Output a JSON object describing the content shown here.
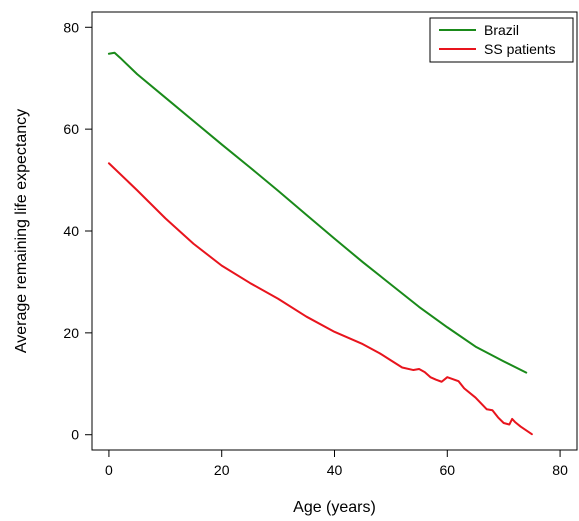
{
  "chart_data": {
    "type": "line",
    "title": "",
    "xlabel": "Age (years)",
    "ylabel": "Average remaining life expectancy",
    "xlim": [
      -3,
      83
    ],
    "ylim": [
      -3,
      83
    ],
    "x_ticks": [
      0,
      20,
      40,
      60,
      80
    ],
    "y_ticks": [
      0,
      20,
      40,
      60,
      80
    ],
    "x_tick_labels": [
      "0",
      "20",
      "40",
      "60",
      "80"
    ],
    "y_tick_labels": [
      "0",
      "20",
      "40",
      "60",
      "80"
    ],
    "grid": false,
    "legend_position": "top-right",
    "series": [
      {
        "name": "Brazil",
        "color": "#1a8a1a",
        "x": [
          0,
          1,
          2,
          5,
          10,
          15,
          20,
          25,
          30,
          35,
          40,
          45,
          50,
          55,
          60,
          65,
          70,
          74
        ],
        "y": [
          74.8,
          75.0,
          74.0,
          70.8,
          66.2,
          61.6,
          57.0,
          52.5,
          47.9,
          43.2,
          38.5,
          33.9,
          29.5,
          25.1,
          21.1,
          17.3,
          14.4,
          12.2
        ]
      },
      {
        "name": "SS patients",
        "color": "#e8141d",
        "x": [
          0,
          5,
          10,
          15,
          20,
          25,
          30,
          35,
          40,
          45,
          48,
          50,
          52,
          54,
          55,
          56,
          57,
          58,
          59,
          60,
          61,
          62,
          63,
          65,
          67,
          68,
          69,
          70,
          71,
          71.5,
          72,
          73,
          75
        ],
        "y": [
          53.3,
          48.0,
          42.5,
          37.5,
          33.2,
          29.8,
          26.7,
          23.2,
          20.2,
          17.8,
          16.0,
          14.6,
          13.2,
          12.7,
          12.9,
          12.3,
          11.3,
          10.8,
          10.4,
          11.3,
          10.9,
          10.5,
          9.1,
          7.3,
          5.0,
          4.8,
          3.4,
          2.3,
          2.0,
          3.1,
          2.5,
          1.6,
          0.1
        ]
      }
    ]
  }
}
